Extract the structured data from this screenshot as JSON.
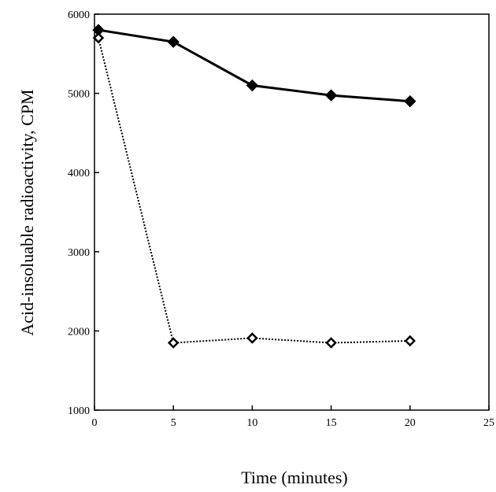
{
  "chart_data": {
    "type": "line",
    "title": "",
    "xlabel": "Time (minutes)",
    "ylabel": "Acid-insoluable radioactivity, CPM",
    "xlim": [
      0,
      25
    ],
    "ylim": [
      1000,
      6000
    ],
    "xticks": [
      "0",
      "5",
      "10",
      "15",
      "20",
      "25"
    ],
    "yticks": [
      "1000",
      "2000",
      "3000",
      "4000",
      "5000",
      "6000"
    ],
    "grid": false,
    "legend": "none",
    "series": [
      {
        "style": "solid",
        "marker": "filled-diamond",
        "color": "#000000",
        "x": [
          0.25,
          5,
          10,
          15,
          20
        ],
        "y": [
          5800,
          5650,
          5100,
          4975,
          4900
        ]
      },
      {
        "style": "dotted",
        "marker": "open-diamond",
        "color": "#000000",
        "x": [
          0.25,
          5,
          10,
          15,
          20
        ],
        "y": [
          5700,
          1850,
          1910,
          1850,
          1875
        ]
      }
    ]
  }
}
